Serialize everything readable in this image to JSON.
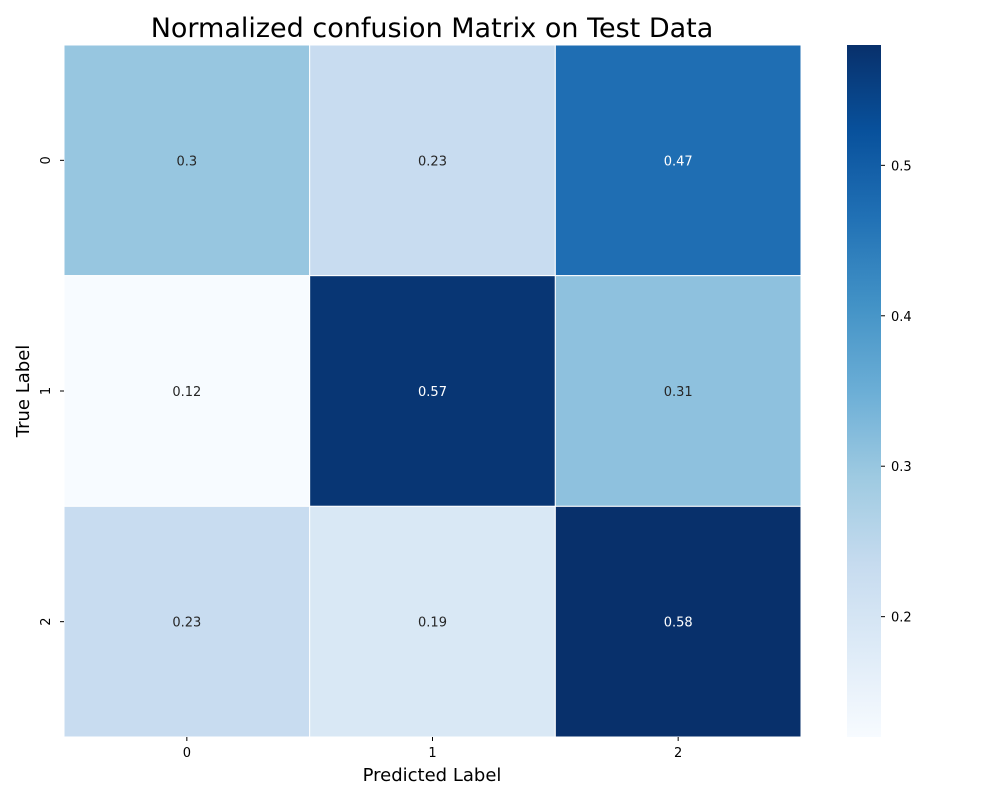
{
  "chart_data": {
    "type": "heatmap",
    "title": "Normalized confusion Matrix on Test Data",
    "xlabel": "Predicted Label",
    "ylabel": "True Label",
    "x_categories": [
      "0",
      "1",
      "2"
    ],
    "y_categories": [
      "0",
      "1",
      "2"
    ],
    "values": [
      [
        0.3,
        0.23,
        0.47
      ],
      [
        0.12,
        0.57,
        0.31
      ],
      [
        0.23,
        0.19,
        0.58
      ]
    ],
    "value_labels": [
      [
        "0.3",
        "0.23",
        "0.47"
      ],
      [
        "0.12",
        "0.57",
        "0.31"
      ],
      [
        "0.23",
        "0.19",
        "0.58"
      ]
    ],
    "colormap": "Blues",
    "color_range": [
      0.12,
      0.58
    ],
    "colorbar_ticks": [
      0.2,
      0.3,
      0.4,
      0.5
    ],
    "colorbar_tick_labels": [
      "0.2",
      "0.3",
      "0.4",
      "0.5"
    ],
    "colorbar_placement": "right",
    "cell_border_color": "#ffffff",
    "grid": false
  }
}
